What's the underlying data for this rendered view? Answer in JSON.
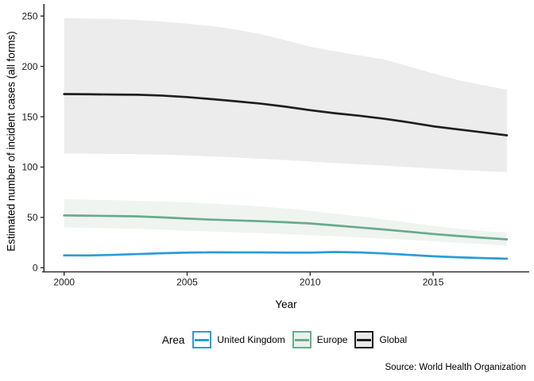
{
  "chart_data": {
    "type": "line",
    "title": "",
    "xlabel": "Year",
    "ylabel": "Estimated number of incident cases (all forms)",
    "legend_title": "Area",
    "legend_position": "bottom",
    "grid": false,
    "source": "Source: World Health Organization",
    "xlim": [
      2000,
      2018
    ],
    "ylim": [
      0,
      250
    ],
    "x_ticks": [
      2000,
      2005,
      2010,
      2015
    ],
    "y_ticks": [
      0,
      50,
      100,
      150,
      200,
      250
    ],
    "x": [
      2000,
      2001,
      2002,
      2003,
      2004,
      2005,
      2006,
      2007,
      2008,
      2009,
      2010,
      2011,
      2012,
      2013,
      2014,
      2015,
      2016,
      2017,
      2018
    ],
    "series": [
      {
        "id": "united-kingdom",
        "name": "United Kingdom",
        "color": "#2B9CD8",
        "band_fill": "#EAF4FB",
        "key_fill": "#FDFEFF",
        "values": [
          12.3,
          12.2,
          12.8,
          13.6,
          14.4,
          15.0,
          15.3,
          15.2,
          15.2,
          15.0,
          15.0,
          15.6,
          15.2,
          14.2,
          12.8,
          11.4,
          10.4,
          9.6,
          9.0
        ],
        "upper": [
          13.4,
          13.3,
          13.9,
          14.7,
          15.5,
          16.1,
          16.4,
          16.3,
          16.3,
          16.1,
          16.1,
          16.7,
          16.3,
          15.3,
          13.9,
          12.5,
          11.4,
          10.6,
          10.0
        ],
        "lower": [
          11.3,
          11.2,
          11.8,
          12.6,
          13.4,
          14.0,
          14.3,
          14.2,
          14.2,
          14.0,
          14.0,
          14.6,
          14.2,
          13.2,
          11.8,
          10.4,
          9.4,
          8.6,
          8.0
        ]
      },
      {
        "id": "europe",
        "name": "Europe",
        "color": "#68AB8E",
        "band_fill": "#EFF4F1",
        "key_fill": "#EAF1EC",
        "values": [
          52.0,
          51.7,
          51.4,
          51.0,
          50.0,
          48.8,
          47.8,
          47.0,
          46.2,
          45.2,
          44.0,
          42.0,
          40.0,
          38.0,
          35.8,
          33.5,
          31.6,
          29.8,
          28.2
        ],
        "upper": [
          68.0,
          67.6,
          67.2,
          66.6,
          65.8,
          65.0,
          63.8,
          62.4,
          60.8,
          59.0,
          56.5,
          53.8,
          51.0,
          48.0,
          45.0,
          41.5,
          38.8,
          36.5,
          35.0
        ],
        "lower": [
          40.0,
          39.6,
          39.2,
          38.7,
          37.8,
          36.7,
          35.9,
          35.1,
          34.3,
          33.4,
          32.4,
          31.2,
          30.0,
          28.8,
          27.6,
          26.4,
          24.9,
          23.4,
          22.0
        ]
      },
      {
        "id": "global",
        "name": "Global",
        "color": "#1F1F1F",
        "band_fill": "#ECECEC",
        "key_fill": "#EAEAEA",
        "values": [
          172.5,
          172.3,
          172.0,
          171.8,
          171.0,
          169.5,
          167.5,
          165.3,
          163.0,
          160.0,
          156.5,
          153.5,
          151.0,
          148.0,
          144.5,
          140.5,
          137.5,
          134.5,
          131.5
        ],
        "upper": [
          248.0,
          247.5,
          247.0,
          246.0,
          244.5,
          242.5,
          240.0,
          236.5,
          232.0,
          226.0,
          219.5,
          215.0,
          211.0,
          207.0,
          200.0,
          193.0,
          186.5,
          181.5,
          177.0
        ],
        "lower": [
          113.5,
          113.3,
          113.0,
          112.8,
          112.3,
          111.5,
          110.5,
          109.5,
          108.2,
          107.0,
          105.5,
          104.0,
          102.7,
          101.5,
          100.0,
          98.5,
          97.3,
          96.0,
          95.0
        ]
      }
    ]
  }
}
